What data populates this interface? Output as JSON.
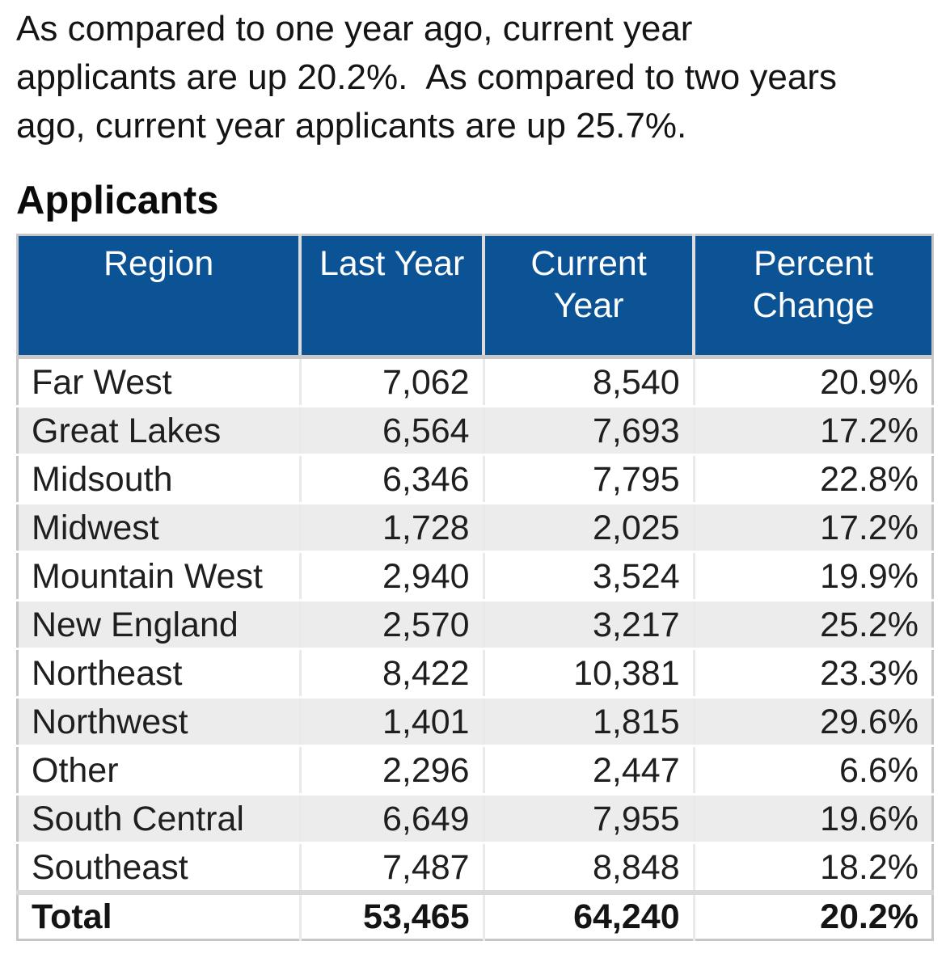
{
  "intro": {
    "lines": [
      "As compared to one year ago, current year",
      "applicants are up 20.2%.  As compared to two years",
      "ago, current year applicants are up 25.7%."
    ]
  },
  "section_title": "Applicants",
  "table": {
    "headers": {
      "region": "Region",
      "last_year": "Last Year",
      "current_year": "Current Year",
      "percent_change": "Percent Change"
    },
    "rows": [
      {
        "region": "Far West",
        "last_year": "7,062",
        "current_year": "8,540",
        "percent_change": "20.9%"
      },
      {
        "region": "Great Lakes",
        "last_year": "6,564",
        "current_year": "7,693",
        "percent_change": "17.2%"
      },
      {
        "region": "Midsouth",
        "last_year": "6,346",
        "current_year": "7,795",
        "percent_change": "22.8%"
      },
      {
        "region": "Midwest",
        "last_year": "1,728",
        "current_year": "2,025",
        "percent_change": "17.2%"
      },
      {
        "region": "Mountain West",
        "last_year": "2,940",
        "current_year": "3,524",
        "percent_change": "19.9%"
      },
      {
        "region": "New England",
        "last_year": "2,570",
        "current_year": "3,217",
        "percent_change": "25.2%"
      },
      {
        "region": "Northeast",
        "last_year": "8,422",
        "current_year": "10,381",
        "percent_change": "23.3%"
      },
      {
        "region": "Northwest",
        "last_year": "1,401",
        "current_year": "1,815",
        "percent_change": "29.6%"
      },
      {
        "region": "Other",
        "last_year": "2,296",
        "current_year": "2,447",
        "percent_change": "6.6%"
      },
      {
        "region": "South Central",
        "last_year": "6,649",
        "current_year": "7,955",
        "percent_change": "19.6%"
      },
      {
        "region": "Southeast",
        "last_year": "7,487",
        "current_year": "8,848",
        "percent_change": "18.2%"
      }
    ],
    "total": {
      "label": "Total",
      "last_year": "53,465",
      "current_year": "64,240",
      "percent_change": "20.2%"
    }
  },
  "colors": {
    "header_bg": "#0b5394",
    "header_text": "#ffffff",
    "alt_row_bg": "#ececec",
    "outer_border": "#c6c6c6",
    "body_text": "#1c1c1c"
  }
}
